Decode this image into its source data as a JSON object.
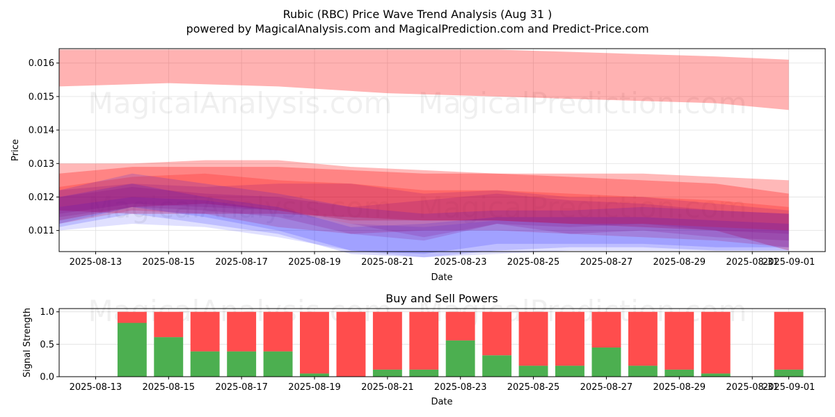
{
  "header": {
    "title": "Rubic (RBC) Price Wave Trend Analysis (Aug 31 )",
    "subtitle": "powered by MagicalAnalysis.com and MagicalPrediction.com and Predict-Price.com"
  },
  "watermarks": [
    "MagicalAnalysis.com",
    "MagicalPrediction.com"
  ],
  "colors": {
    "band_red": "#ff0000",
    "band_blue": "#0000ff",
    "band_purple": "#800080",
    "buy_green": "#4caf50",
    "sell_red": "#ff4d4d",
    "grid": "#e0e0e0"
  },
  "chart_data": [
    {
      "type": "area",
      "title": "",
      "xlabel": "Date",
      "ylabel": "Price",
      "ylim": [
        0.01037,
        0.01643
      ],
      "xlim": [
        "2025-08-12",
        "2025-09-02"
      ],
      "grid": true,
      "x_ticks": [
        "2025-08-13",
        "2025-08-15",
        "2025-08-17",
        "2025-08-19",
        "2025-08-21",
        "2025-08-23",
        "2025-08-25",
        "2025-08-27",
        "2025-08-29",
        "2025-08-31",
        "2025-09-01"
      ],
      "y_ticks": [
        "0.011",
        "0.012",
        "0.013",
        "0.014",
        "0.015",
        "0.016"
      ],
      "series": [
        {
          "color": "#ff0000",
          "opacity": 0.3,
          "x": [
            "2025-08-12",
            "2025-08-15",
            "2025-08-18",
            "2025-08-21",
            "2025-08-24",
            "2025-08-27",
            "2025-08-30",
            "2025-09-01"
          ],
          "upper": [
            0.0164,
            0.0164,
            0.0164,
            0.0164,
            0.0164,
            0.0163,
            0.0162,
            0.0161
          ],
          "lower": [
            0.0153,
            0.0154,
            0.0153,
            0.0151,
            0.015,
            0.0149,
            0.0148,
            0.0146
          ]
        },
        {
          "color": "#ff0000",
          "opacity": 0.28,
          "x": [
            "2025-08-12",
            "2025-08-14",
            "2025-08-16",
            "2025-08-18",
            "2025-08-20",
            "2025-08-22",
            "2025-08-24",
            "2025-08-26",
            "2025-08-28",
            "2025-08-30",
            "2025-09-01"
          ],
          "upper": [
            0.013,
            0.013,
            0.0131,
            0.0131,
            0.0129,
            0.0128,
            0.0127,
            0.0127,
            0.0127,
            0.0126,
            0.0125
          ],
          "lower": [
            0.0116,
            0.0115,
            0.0115,
            0.0115,
            0.0114,
            0.0113,
            0.0113,
            0.0112,
            0.0112,
            0.0111,
            0.011
          ]
        },
        {
          "color": "#ff0000",
          "opacity": 0.28,
          "x": [
            "2025-08-12",
            "2025-08-14",
            "2025-08-16",
            "2025-08-18",
            "2025-08-20",
            "2025-08-22",
            "2025-08-24",
            "2025-08-26",
            "2025-08-28",
            "2025-08-30",
            "2025-09-01"
          ],
          "upper": [
            0.0127,
            0.0129,
            0.0129,
            0.0129,
            0.0128,
            0.0127,
            0.0127,
            0.0126,
            0.0125,
            0.0124,
            0.0121
          ],
          "lower": [
            0.0113,
            0.0117,
            0.0118,
            0.0116,
            0.0113,
            0.0113,
            0.0113,
            0.0112,
            0.0111,
            0.011,
            0.0104
          ]
        },
        {
          "color": "#ff0000",
          "opacity": 0.2,
          "x": [
            "2025-08-12",
            "2025-08-14",
            "2025-08-16",
            "2025-08-18",
            "2025-08-20",
            "2025-08-22",
            "2025-08-24",
            "2025-08-26",
            "2025-08-28",
            "2025-08-30",
            "2025-09-01"
          ],
          "upper": [
            0.0123,
            0.0126,
            0.0127,
            0.0125,
            0.0124,
            0.0122,
            0.0122,
            0.0121,
            0.012,
            0.0119,
            0.0117
          ],
          "lower": [
            0.0112,
            0.0116,
            0.0115,
            0.0111,
            0.0109,
            0.011,
            0.011,
            0.0109,
            0.0108,
            0.0107,
            0.0105
          ]
        },
        {
          "color": "#0000ff",
          "opacity": 0.15,
          "x": [
            "2025-08-12",
            "2025-08-14",
            "2025-08-16",
            "2025-08-18",
            "2025-08-20",
            "2025-08-22",
            "2025-08-24",
            "2025-08-26",
            "2025-08-28",
            "2025-08-30",
            "2025-09-01"
          ],
          "upper": [
            0.0122,
            0.0127,
            0.0124,
            0.0121,
            0.0117,
            0.0115,
            0.0116,
            0.0116,
            0.0117,
            0.0116,
            0.0115
          ],
          "lower": [
            0.0112,
            0.0117,
            0.0114,
            0.011,
            0.0104,
            0.0103,
            0.0106,
            0.0106,
            0.0106,
            0.0105,
            0.0105
          ]
        },
        {
          "color": "#0000ff",
          "opacity": 0.15,
          "x": [
            "2025-08-12",
            "2025-08-14",
            "2025-08-16",
            "2025-08-18",
            "2025-08-20",
            "2025-08-22",
            "2025-08-24",
            "2025-08-26",
            "2025-08-28",
            "2025-08-30",
            "2025-09-01"
          ],
          "upper": [
            0.012,
            0.0124,
            0.012,
            0.0117,
            0.0111,
            0.0112,
            0.0114,
            0.0114,
            0.0114,
            0.0113,
            0.0112
          ],
          "lower": [
            0.0111,
            0.0115,
            0.0112,
            0.0109,
            0.0103,
            0.0102,
            0.0104,
            0.0105,
            0.0105,
            0.0104,
            0.0104
          ]
        },
        {
          "color": "#0000ff",
          "opacity": 0.12,
          "x": [
            "2025-08-12",
            "2025-08-14",
            "2025-08-16",
            "2025-08-18",
            "2025-08-20",
            "2025-08-22",
            "2025-08-24",
            "2025-08-26",
            "2025-08-28",
            "2025-08-30",
            "2025-09-01"
          ],
          "upper": [
            0.0117,
            0.012,
            0.0119,
            0.0116,
            0.0112,
            0.0111,
            0.0113,
            0.0112,
            0.0112,
            0.0111,
            0.011
          ],
          "lower": [
            0.011,
            0.0112,
            0.0111,
            0.0108,
            0.0104,
            0.0102,
            0.0103,
            0.0104,
            0.0104,
            0.0104,
            0.0104
          ]
        },
        {
          "color": "#800080",
          "opacity": 0.18,
          "x": [
            "2025-08-12",
            "2025-08-14",
            "2025-08-16",
            "2025-08-18",
            "2025-08-20",
            "2025-08-22",
            "2025-08-24",
            "2025-08-26",
            "2025-08-28",
            "2025-08-30",
            "2025-09-01"
          ],
          "upper": [
            0.0122,
            0.0124,
            0.0123,
            0.0124,
            0.0124,
            0.0121,
            0.0122,
            0.012,
            0.012,
            0.0118,
            0.0116
          ],
          "lower": [
            0.0115,
            0.0118,
            0.0117,
            0.0116,
            0.0112,
            0.0108,
            0.0112,
            0.0111,
            0.0112,
            0.011,
            0.0109
          ]
        },
        {
          "color": "#800080",
          "opacity": 0.18,
          "x": [
            "2025-08-12",
            "2025-08-14",
            "2025-08-16",
            "2025-08-18",
            "2025-08-20",
            "2025-08-22",
            "2025-08-24",
            "2025-08-26",
            "2025-08-28",
            "2025-08-30",
            "2025-09-01"
          ],
          "upper": [
            0.012,
            0.0123,
            0.0121,
            0.012,
            0.0117,
            0.0119,
            0.0121,
            0.0119,
            0.0118,
            0.0116,
            0.0115
          ],
          "lower": [
            0.0114,
            0.0117,
            0.0116,
            0.0114,
            0.0109,
            0.0107,
            0.0112,
            0.0109,
            0.011,
            0.0108,
            0.0107
          ]
        }
      ]
    },
    {
      "type": "bar",
      "title": "Buy and Sell Powers",
      "xlabel": "Date",
      "ylabel": "Signal Strength",
      "ylim": [
        0,
        1.05
      ],
      "xlim": [
        "2025-08-12",
        "2025-09-02"
      ],
      "grid": true,
      "x_ticks": [
        "2025-08-13",
        "2025-08-15",
        "2025-08-17",
        "2025-08-19",
        "2025-08-21",
        "2025-08-23",
        "2025-08-25",
        "2025-08-27",
        "2025-08-29",
        "2025-08-31",
        "2025-09-01"
      ],
      "y_ticks": [
        "0.0",
        "0.5",
        "1.0"
      ],
      "categories": [
        "2025-08-14",
        "2025-08-15",
        "2025-08-16",
        "2025-08-17",
        "2025-08-18",
        "2025-08-19",
        "2025-08-20",
        "2025-08-21",
        "2025-08-22",
        "2025-08-23",
        "2025-08-24",
        "2025-08-25",
        "2025-08-26",
        "2025-08-27",
        "2025-08-28",
        "2025-08-29",
        "2025-08-30",
        "2025-09-01"
      ],
      "series": [
        {
          "name": "Buy",
          "color": "#4caf50",
          "values": [
            0.83,
            0.61,
            0.39,
            0.39,
            0.39,
            0.05,
            0.0,
            0.11,
            0.11,
            0.56,
            0.33,
            0.17,
            0.17,
            0.45,
            0.17,
            0.11,
            0.05,
            0.11
          ]
        },
        {
          "name": "Sell",
          "color": "#ff4d4d",
          "values": [
            0.17,
            0.39,
            0.61,
            0.61,
            0.61,
            0.95,
            1.0,
            0.89,
            0.89,
            0.44,
            0.67,
            0.83,
            0.83,
            0.55,
            0.83,
            0.89,
            0.95,
            0.89
          ]
        }
      ]
    }
  ]
}
